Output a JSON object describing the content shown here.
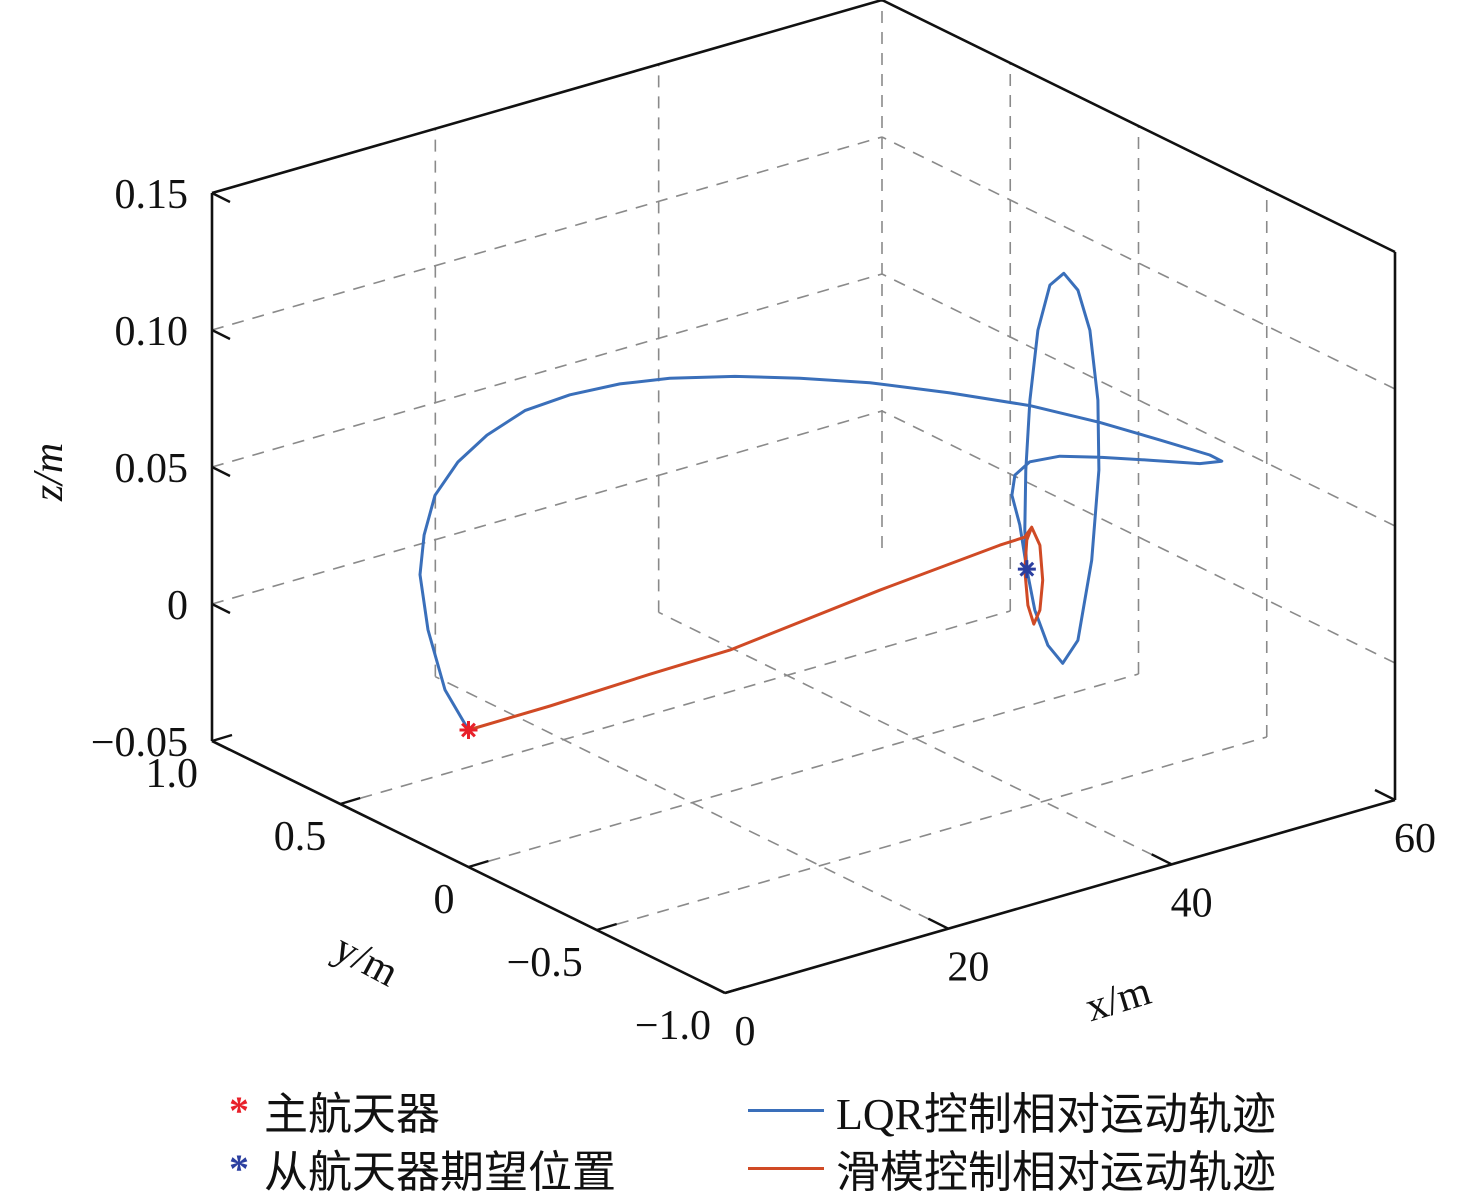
{
  "chart_data": {
    "type": "line3d",
    "xlabel": "x/m",
    "ylabel": "y/m",
    "zlabel": "z/m",
    "xlim": [
      0,
      60
    ],
    "ylim": [
      -1.0,
      1.0
    ],
    "zlim": [
      -0.05,
      0.15
    ],
    "xticks": [
      "0",
      "20",
      "40",
      "60"
    ],
    "xtick_values": [
      0,
      20,
      40,
      60
    ],
    "yticks": [
      "1.0",
      "0.5",
      "0",
      "−0.5",
      "−1.0"
    ],
    "ytick_values": [
      1.0,
      0.5,
      0,
      -0.5,
      -1.0
    ],
    "zticks": [
      "0.15",
      "0.10",
      "0.05",
      "0",
      "−0.05"
    ],
    "ztick_values": [
      0.15,
      0.1,
      0.05,
      0,
      -0.05
    ],
    "grid": true,
    "legend_position": "bottom",
    "points": [
      {
        "name": "主航天器",
        "x": 0,
        "y": 0,
        "z": 0,
        "marker": "asterisk",
        "color": "#e8202a"
      },
      {
        "name": "从航天器期望位置",
        "x": 50,
        "y": 0,
        "z": 0,
        "marker": "asterisk",
        "color": "#2b3fa0"
      }
    ],
    "series": [
      {
        "name": "LQR控制相对运动轨迹",
        "color": "#3a6fba",
        "xyz": [
          [
            0,
            0,
            0
          ],
          [
            0.19,
            0.1,
            0.0098
          ],
          [
            0.97,
            0.2,
            0.0262
          ],
          [
            2.55,
            0.3,
            0.0399
          ],
          [
            4.06,
            0.35,
            0.0503
          ],
          [
            6.19,
            0.4,
            0.06
          ],
          [
            8.7,
            0.42,
            0.0683
          ],
          [
            11.53,
            0.43,
            0.0743
          ],
          [
            14.7,
            0.42,
            0.08
          ],
          [
            18.27,
            0.4,
            0.0825
          ],
          [
            22.06,
            0.37,
            0.0834
          ],
          [
            25.61,
            0.33,
            0.0831
          ],
          [
            30.29,
            0.28,
            0.0806
          ],
          [
            34.73,
            0.22,
            0.0775
          ],
          [
            39.39,
            0.15,
            0.0736
          ],
          [
            44.25,
            0.05,
            0.0688
          ],
          [
            48.43,
            -0.08,
            0.0652
          ],
          [
            51.94,
            -0.2,
            0.0605
          ],
          [
            55.01,
            -0.3,
            0.0551
          ],
          [
            58.12,
            -0.36,
            0.0487
          ],
          [
            58.96,
            -0.37,
            0.0459
          ],
          [
            57.91,
            -0.33,
            0.0444
          ],
          [
            55.04,
            -0.26,
            0.0458
          ],
          [
            52.18,
            -0.19,
            0.047
          ],
          [
            50.2,
            -0.12,
            0.0465
          ],
          [
            49.12,
            -0.05,
            0.0425
          ],
          [
            48.93,
            0,
            0.0356
          ],
          [
            49.35,
            0.03,
            0.0264
          ],
          [
            50.06,
            0.03,
            0.0147
          ],
          [
            50,
            0,
            0
          ],
          [
            50,
            -0.031,
            -0.0135
          ],
          [
            50,
            -0.082,
            -0.024
          ],
          [
            50,
            -0.14,
            -0.0279
          ],
          [
            50,
            -0.199,
            -0.0168
          ],
          [
            50,
            -0.253,
            0.0149
          ],
          [
            50,
            -0.281,
            0.0491
          ],
          [
            50,
            -0.277,
            0.0744
          ],
          [
            50,
            -0.246,
            0.0985
          ],
          [
            50,
            -0.199,
            0.111
          ],
          [
            50,
            -0.144,
            0.1146
          ],
          [
            50,
            -0.09,
            0.1078
          ],
          [
            50,
            -0.043,
            0.0892
          ],
          [
            50,
            -0.012,
            0.0622
          ],
          [
            50,
            0.004,
            0.036
          ],
          [
            50,
            0.008,
            0.0139
          ],
          [
            50,
            0,
            0
          ]
        ]
      },
      {
        "name": "滑模控制相对运动轨迹",
        "color": "#d04a25",
        "xyz": [
          [
            0,
            0,
            0
          ],
          [
            7.3,
            0,
            0.0002
          ],
          [
            16.25,
            0,
            0.0013
          ],
          [
            23.4,
            0,
            0.0017
          ],
          [
            36.8,
            0,
            0.0078
          ],
          [
            47.6,
            0,
            0.0116
          ],
          [
            49.8,
            0,
            0.0119
          ],
          [
            50,
            -0.019,
            0.0162
          ],
          [
            50,
            -0.051,
            0.0111
          ],
          [
            50,
            -0.062,
            -0.0012
          ],
          [
            50,
            -0.051,
            -0.0126
          ],
          [
            50,
            -0.027,
            -0.0188
          ],
          [
            50,
            -0.004,
            -0.013
          ],
          [
            50,
            0.008,
            -0.0007
          ],
          [
            50,
            0,
            0.0106
          ],
          [
            50,
            -0.019,
            0.0162
          ]
        ]
      }
    ]
  },
  "legend": {
    "items": [
      {
        "label": "主航天器",
        "symbol": "*",
        "color": "#e8202a"
      },
      {
        "label": "从航天器期望位置",
        "symbol": "*",
        "color": "#2b3fa0"
      },
      {
        "label": "LQR控制相对运动轨迹",
        "color": "#3a6fba"
      },
      {
        "label": "滑模控制相对运动轨迹",
        "color": "#d04a25"
      }
    ]
  }
}
